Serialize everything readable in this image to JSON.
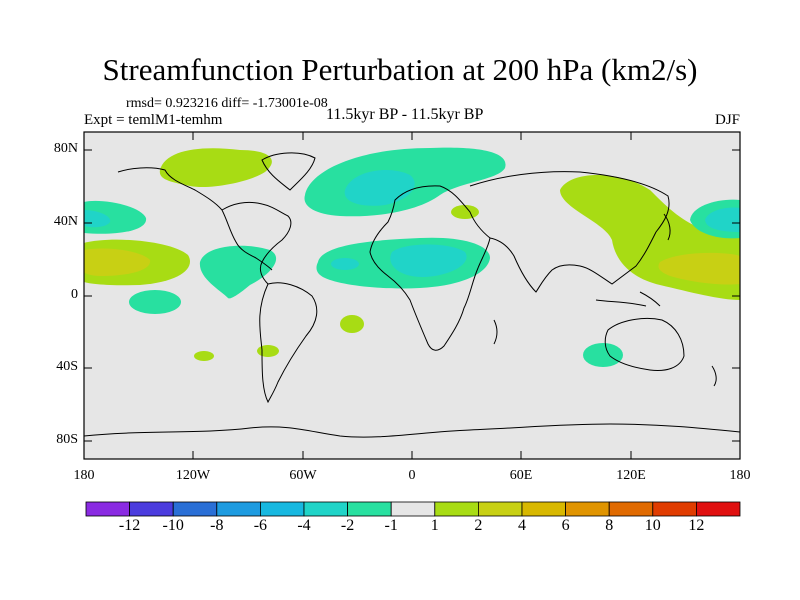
{
  "title": "Streamfunction Perturbation at 200 hPa (km2/s)",
  "subtitle_left_top": "rmsd= 0.923216 diff= -1.73001e-08",
  "subtitle_left": "Expt = temlM1-temhm",
  "subtitle_center": "11.5kyr BP - 11.5kyr BP",
  "subtitle_right": "DJF",
  "lat_ticks": [
    "80N",
    "40N",
    "0",
    "40S",
    "80S"
  ],
  "lon_ticks": [
    "180",
    "120W",
    "60W",
    "0",
    "60E",
    "120E",
    "180"
  ],
  "colorbar": {
    "labels": [
      "-12",
      "-10",
      "-8",
      "-6",
      "-4",
      "-2",
      "-1",
      "1",
      "2",
      "4",
      "6",
      "8",
      "10",
      "12"
    ],
    "colors": [
      "#8a2be2",
      "#4b3cde",
      "#2a6fd6",
      "#1e9be0",
      "#17b8e0",
      "#20d4c8",
      "#28e0a0",
      "#e6e6e6",
      "#a8dc14",
      "#c8d014",
      "#d8b800",
      "#e09400",
      "#e06a00",
      "#e03c00",
      "#e01010"
    ]
  },
  "colors": {
    "background_field": "#e6e6e6",
    "coast": "#000000"
  }
}
